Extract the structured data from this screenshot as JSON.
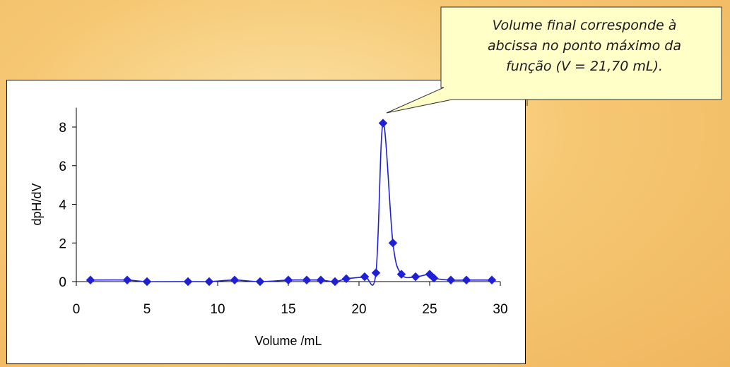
{
  "chart_data": {
    "type": "scatter",
    "x": [
      1,
      3.6,
      5,
      7.9,
      9.4,
      11.2,
      13,
      15,
      16.3,
      17.3,
      18.3,
      19.1,
      20.4,
      21.2,
      21.7,
      22.4,
      23,
      24,
      25,
      25.3,
      26.5,
      27.6,
      29.4
    ],
    "y": [
      0.08,
      0.08,
      0.0,
      0.0,
      0.0,
      0.08,
      0.0,
      0.08,
      0.08,
      0.08,
      0.0,
      0.15,
      0.25,
      0.45,
      8.2,
      2.0,
      0.38,
      0.25,
      0.38,
      0.18,
      0.08,
      0.08,
      0.08
    ],
    "xlabel": "Volume /mL",
    "ylabel": "dpH/dV",
    "xlim": [
      0,
      30
    ],
    "ylim": [
      0,
      9
    ],
    "xticks": [
      "0",
      "5",
      "10",
      "15",
      "20",
      "25",
      "30"
    ],
    "yticks": [
      "0",
      "2",
      "4",
      "6",
      "8"
    ],
    "grid": false,
    "series_color": "#1f1fd6",
    "marker": "diamond"
  },
  "callout": {
    "lines": [
      "Volume final corresponde à",
      "abcissa no ponto máximo da",
      "função (V = 21,70 mL)."
    ],
    "fill_color": "#ffffc8"
  }
}
